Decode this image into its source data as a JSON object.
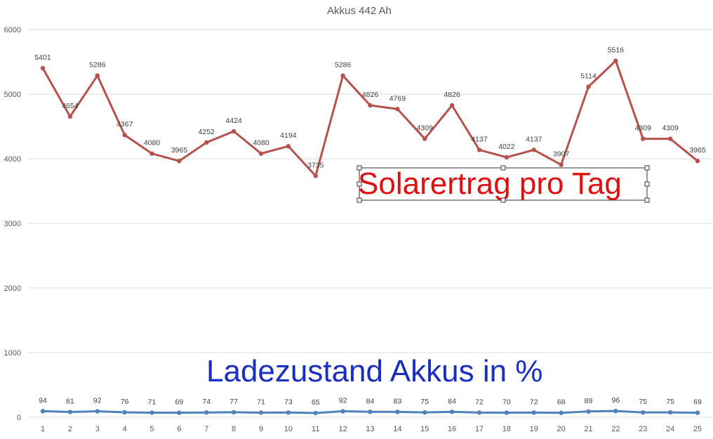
{
  "chart_data": {
    "type": "line",
    "title": "Akkus 442 Ah",
    "xlabel": "",
    "ylabel": "",
    "ylim": [
      0,
      6000
    ],
    "yticks": [
      "0",
      "1000",
      "2000",
      "3000",
      "4000",
      "5000",
      "6000"
    ],
    "grid": true,
    "categories": [
      "1",
      "2",
      "3",
      "4",
      "5",
      "6",
      "7",
      "8",
      "9",
      "10",
      "11",
      "12",
      "13",
      "14",
      "15",
      "16",
      "17",
      "18",
      "19",
      "20",
      "21",
      "22",
      "23",
      "24",
      "25"
    ],
    "series": [
      {
        "color": "#b5524e",
        "values": [
          5401,
          4654,
          5286,
          4367,
          4080,
          3965,
          4252,
          4424,
          4080,
          4194,
          3735,
          5286,
          4826,
          4769,
          4309,
          4826,
          4137,
          4022,
          4137,
          3907,
          5114,
          5516,
          4309,
          4309,
          3965
        ],
        "labels": [
          "5401",
          "4654",
          "5286",
          "4367",
          "4080",
          "3965",
          "4252",
          "4424",
          "4080",
          "4194",
          "3735",
          "5286",
          "4826",
          "4769",
          "4309",
          "4826",
          "4137",
          "4022",
          "4137",
          "3907",
          "5114",
          "5516",
          "4309",
          "4309",
          "3965"
        ]
      },
      {
        "color": "#4f81bd",
        "values": [
          94,
          81,
          92,
          76,
          71,
          69,
          74,
          77,
          71,
          73,
          65,
          92,
          84,
          83,
          75,
          84,
          72,
          70,
          72,
          68,
          89,
          96,
          75,
          75,
          69
        ],
        "labels": [
          "94",
          "81",
          "92",
          "76",
          "71",
          "69",
          "74",
          "77",
          "71",
          "73",
          "65",
          "92",
          "84",
          "83",
          "75",
          "84",
          "72",
          "70",
          "72",
          "68",
          "89",
          "96",
          "75",
          "75",
          "69"
        ]
      }
    ],
    "annotations": [
      {
        "text": "Solarertrag pro Tag",
        "color": "#e01010",
        "selected": true
      },
      {
        "text": "Ladezustand Akkus in %",
        "color": "#1a2ec2",
        "selected": false
      }
    ]
  }
}
